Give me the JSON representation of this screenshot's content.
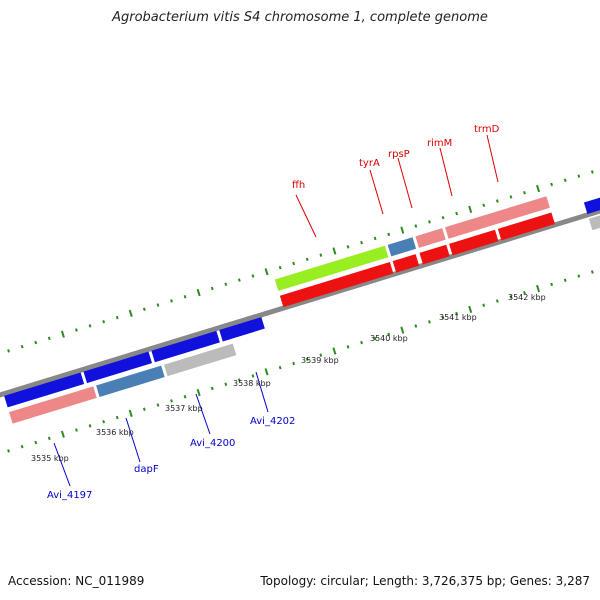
{
  "title": "Agrobacterium vitis S4 chromosome 1, complete genome",
  "footer": {
    "accession": "Accession: NC_011989",
    "stats": "Topology: circular; Length: 3,726,375 bp; Genes: 3,287"
  },
  "colors": {
    "backbone": "#888888",
    "tick": "#2e8b22",
    "red_gene": "#ee1111",
    "pink_gene": "#ee8888",
    "blue_gene": "#1111dd",
    "steel_gene": "#4a7fb5",
    "grey_gene": "#bbbbbb",
    "green_gene": "#99ee22",
    "upper_label": "#dd0000",
    "lower_label": "#0000cc"
  },
  "kbp_ticks": [
    "3535 kbp",
    "3536 kbp",
    "3537 kbp",
    "3538 kbp",
    "3539 kbp",
    "3540 kbp",
    "3541 kbp",
    "3542 kbp"
  ],
  "upper_labels": [
    "ffh",
    "tyrA",
    "rpsP",
    "rimM",
    "trmD"
  ],
  "lower_labels": [
    "Avi_4197",
    "dapF",
    "Avi_4200",
    "Avi_4202"
  ]
}
